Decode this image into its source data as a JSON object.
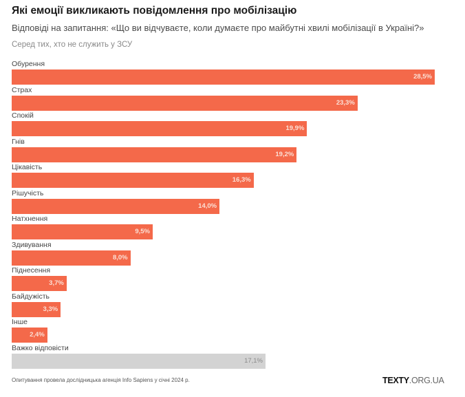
{
  "header": {
    "title": "Які емоції викликають повідомлення про мобілізацію",
    "subtitle": "Відповіді на запитання: «Що ви відчуваєте, коли думаєте про майбутні хвилі мобілізації в Україні?»",
    "note": "Серед тих, хто не служить у ЗСУ"
  },
  "footer": {
    "source": "Опитування провела дослідницька агенція Info Sapiens у січні 2024 р.",
    "logo_bold": "TEXTY",
    "logo_light": ".ORG.UA"
  },
  "colors": {
    "primary_bar": "#f4694a",
    "neutral_bar": "#d3d3d3"
  },
  "chart_data": {
    "type": "bar",
    "orientation": "horizontal",
    "title": "Які емоції викликають повідомлення про мобілізацію",
    "subtitle": "Відповіді на запитання: «Що ви відчуваєте, коли думаєте про майбутні хвилі мобілізації в Україні?»",
    "xlabel": "",
    "ylabel": "",
    "unit": "%",
    "xlim": [
      0,
      28.5
    ],
    "grid": false,
    "categories": [
      "Обурення",
      "Страх",
      "Спокій",
      "Гнів",
      "Цікавість",
      "Рішучість",
      "Натхнення",
      "Здивування",
      "Піднесення",
      "Байдужість",
      "Інше",
      "Важко відповісти"
    ],
    "values": [
      28.5,
      23.3,
      19.9,
      19.2,
      16.3,
      14.0,
      9.5,
      8.0,
      3.7,
      3.3,
      2.4,
      17.1
    ],
    "value_labels": [
      "28,5%",
      "23,3%",
      "19,9%",
      "19,2%",
      "16,3%",
      "14,0%",
      "9,5%",
      "8,0%",
      "3,7%",
      "3,3%",
      "2,4%",
      "17,1%"
    ],
    "highlight": [
      "primary",
      "primary",
      "primary",
      "primary",
      "primary",
      "primary",
      "primary",
      "primary",
      "primary",
      "primary",
      "primary",
      "neutral"
    ]
  }
}
